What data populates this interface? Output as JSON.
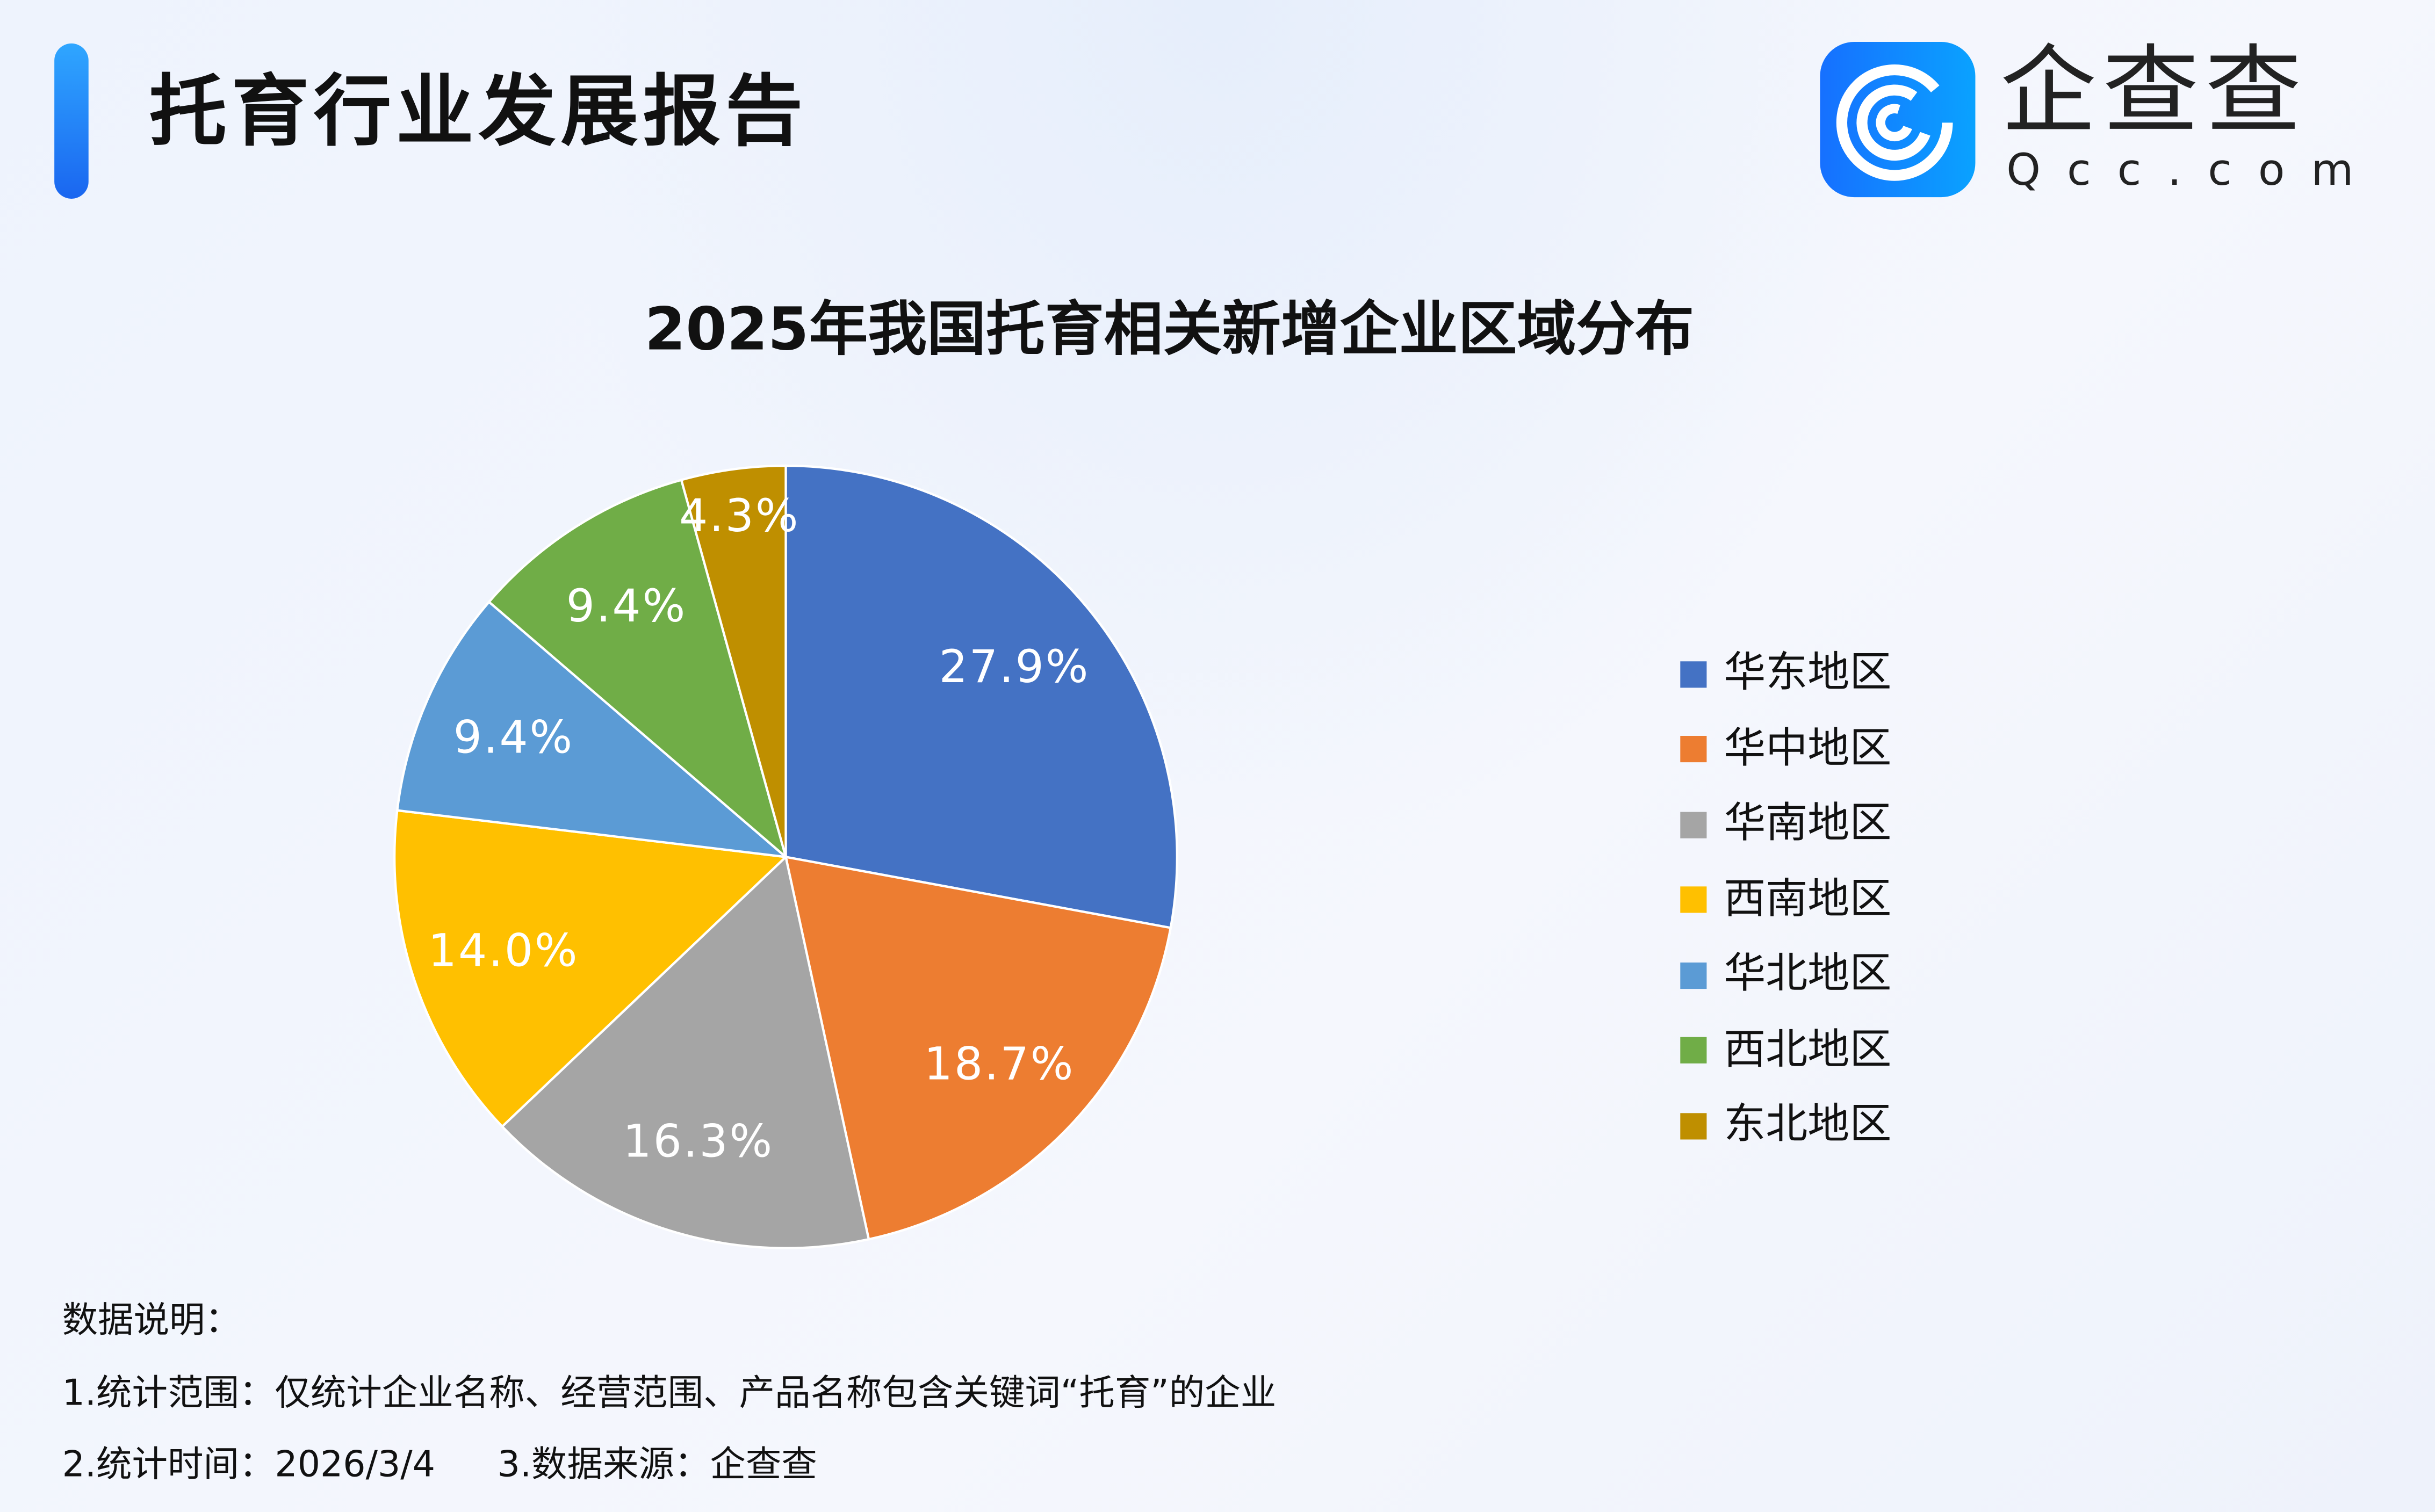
{
  "header": {
    "title": "托育行业发展报告",
    "logo_cn": "企查查",
    "logo_en": "Qcc.com"
  },
  "chart_data": {
    "type": "pie",
    "title": "2025年我国托育相关新增企业区域分布",
    "categories": [
      "华东地区",
      "华中地区",
      "华南地区",
      "西南地区",
      "华北地区",
      "西北地区",
      "东北地区"
    ],
    "values": [
      27.9,
      18.7,
      16.3,
      14.0,
      9.4,
      9.4,
      4.3
    ],
    "labels": [
      "27.9%",
      "18.7%",
      "16.3%",
      "14.0%",
      "9.4%",
      "9.4%",
      "4.3%"
    ],
    "colors": [
      "#4472C4",
      "#ED7D31",
      "#A5A5A5",
      "#FFC000",
      "#5B9BD5",
      "#70AD47",
      "#BF8F00"
    ],
    "legend_position": "right"
  },
  "notes": {
    "heading": "数据说明：",
    "line1": "1.统计范围：仅统计企业名称、经营范围、产品名称包含关键词“托育”的企业",
    "line2": "2.统计时间：2026/3/4",
    "line3": "3.数据来源：企查查"
  }
}
